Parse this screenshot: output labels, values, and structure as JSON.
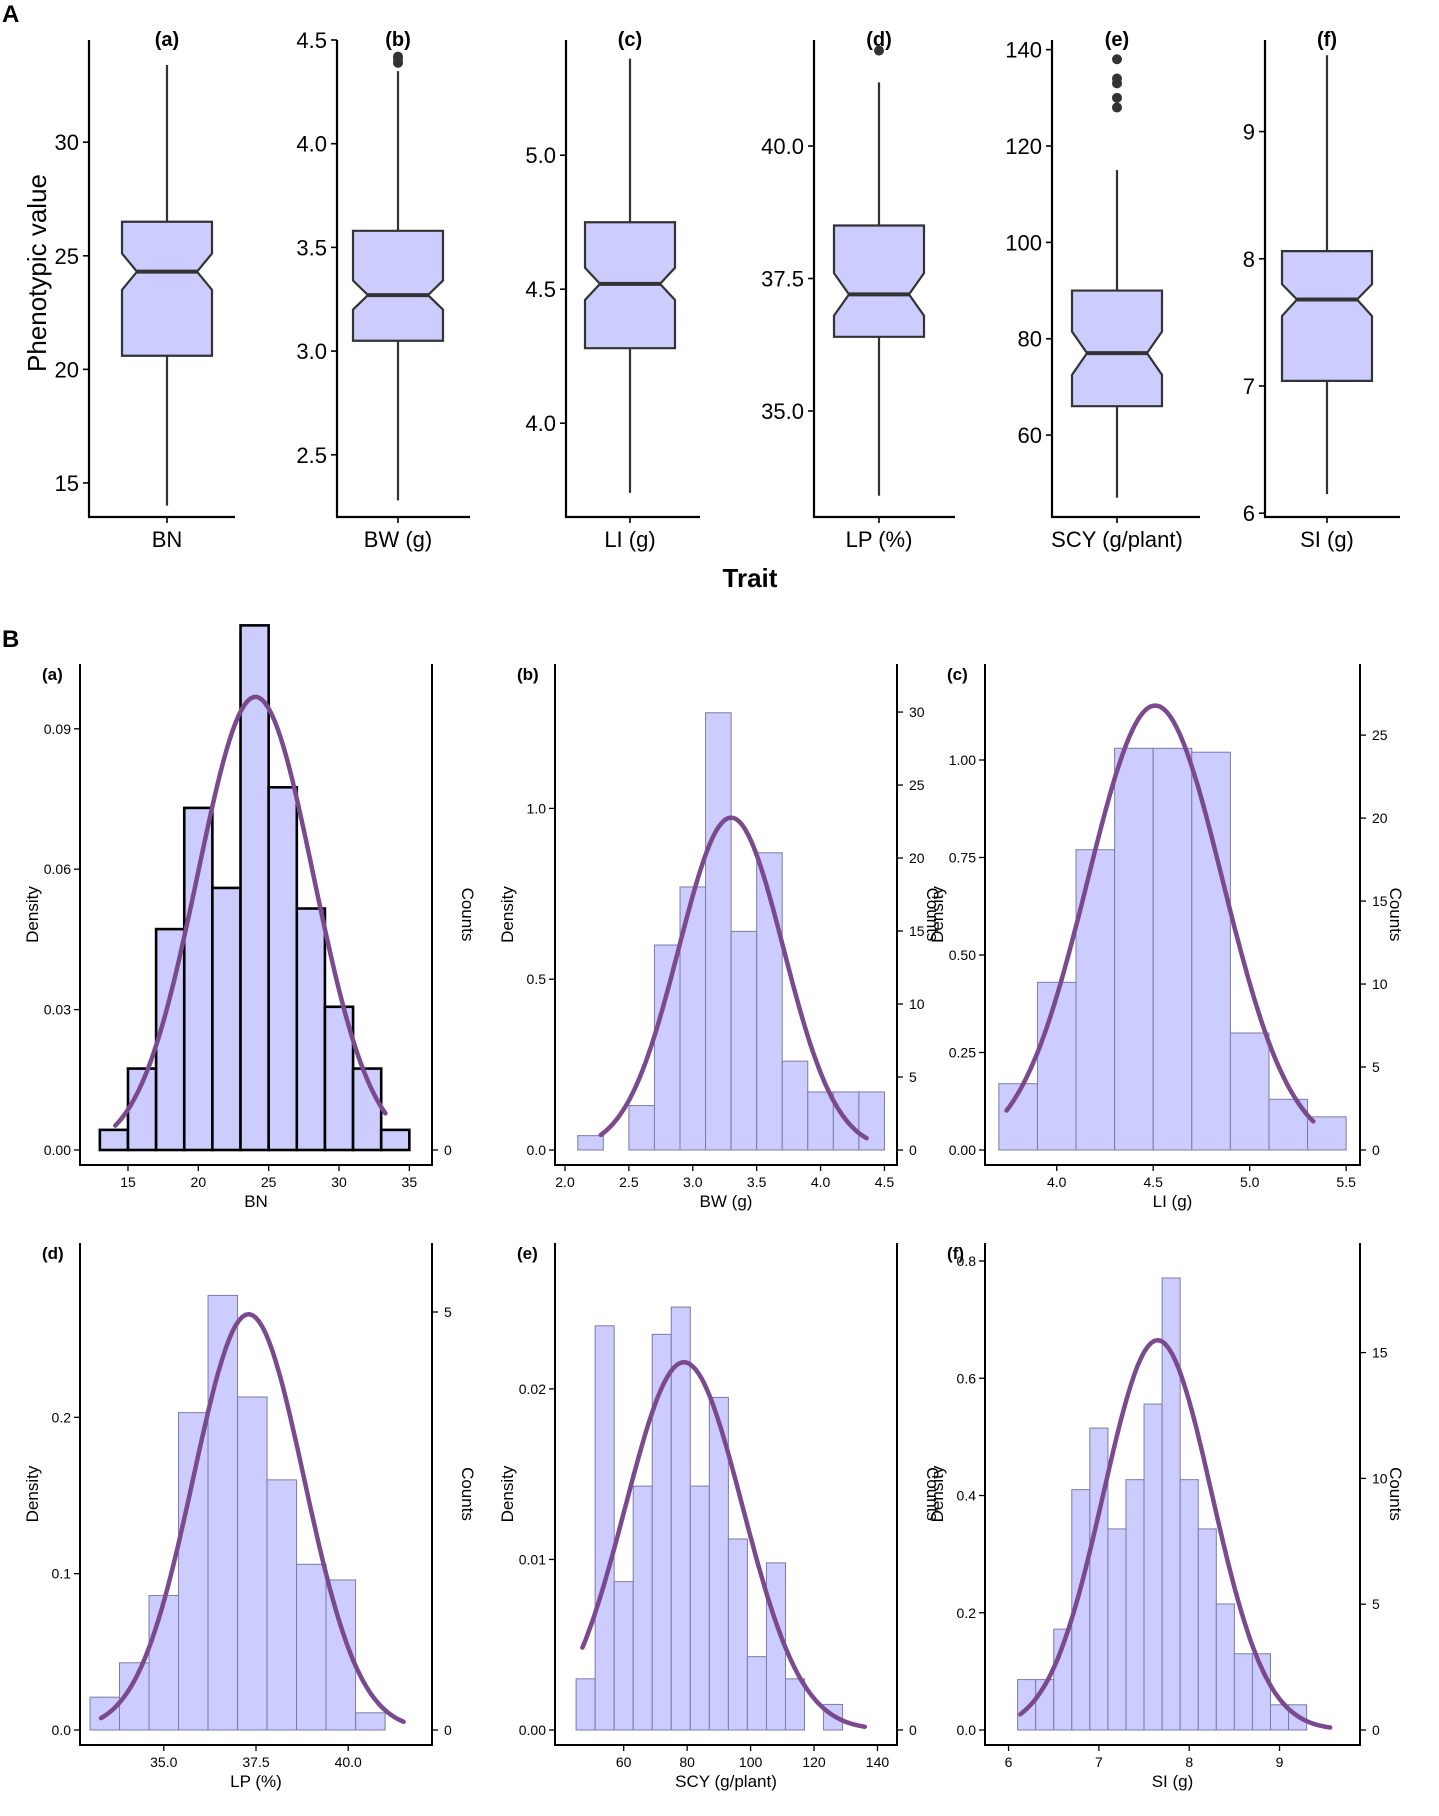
{
  "figure": {
    "panel_a_label": "A",
    "panel_b_label": "B",
    "a_ylabel": "Phenotypic value",
    "a_xlabel": "Trait",
    "colors": {
      "box_fill": "#ccccff",
      "box_stroke": "#333333",
      "bar_fill": "#ccccff",
      "bar_stroke": "#7b7ba8",
      "bar_stroke_bold": "#000000",
      "curve": "#7b4a8e",
      "axis": "#000000",
      "outlier": "#333333"
    }
  },
  "chart_data": [
    {
      "type": "boxplot",
      "panel": "A(a)",
      "title": "(a)",
      "xlabel": "BN",
      "ylim": [
        13.5,
        34.5
      ],
      "yticks": [
        15,
        20,
        25,
        30
      ],
      "ytick_labels": [
        "15",
        "20",
        "25",
        "30"
      ],
      "min": 14,
      "q1": 20.6,
      "median": 24.3,
      "q3": 26.5,
      "max": 33.4,
      "notch_low": 23.5,
      "notch_high": 25.1,
      "outliers": []
    },
    {
      "type": "boxplot",
      "panel": "A(b)",
      "title": "(b)",
      "xlabel": "BW (g)",
      "ylim": [
        2.2,
        4.5
      ],
      "yticks": [
        2.5,
        3.0,
        3.5,
        4.0,
        4.5
      ],
      "ytick_labels": [
        "2.5",
        "3.0",
        "3.5",
        "4.0",
        "4.5"
      ],
      "min": 2.28,
      "q1": 3.05,
      "median": 3.27,
      "q3": 3.58,
      "max": 4.35,
      "notch_low": 3.2,
      "notch_high": 3.34,
      "outliers": [
        4.39,
        4.41,
        4.42
      ]
    },
    {
      "type": "boxplot",
      "panel": "A(c)",
      "title": "(c)",
      "xlabel": "LI (g)",
      "ylim": [
        3.65,
        5.43
      ],
      "yticks": [
        4.0,
        4.5,
        5.0
      ],
      "ytick_labels": [
        "4.0",
        "4.5",
        "5.0"
      ],
      "min": 3.74,
      "q1": 4.28,
      "median": 4.52,
      "q3": 4.75,
      "max": 5.36,
      "notch_low": 4.46,
      "notch_high": 4.58,
      "outliers": []
    },
    {
      "type": "boxplot",
      "panel": "A(d)",
      "title": "(d)",
      "xlabel": "LP (%)",
      "ylim": [
        33.0,
        42.0
      ],
      "yticks": [
        35.0,
        37.5,
        40.0
      ],
      "ytick_labels": [
        "35.0",
        "37.5",
        "40.0"
      ],
      "min": 33.4,
      "q1": 36.4,
      "median": 37.2,
      "q3": 38.5,
      "max": 41.2,
      "notch_low": 36.8,
      "notch_high": 37.6,
      "outliers": [
        41.8
      ]
    },
    {
      "type": "boxplot",
      "panel": "A(e)",
      "title": "(e)",
      "xlabel": "SCY (g/plant)",
      "ylim": [
        43,
        142
      ],
      "yticks": [
        60,
        80,
        100,
        120,
        140
      ],
      "ytick_labels": [
        "60",
        "80",
        "100",
        "120",
        "140"
      ],
      "min": 47,
      "q1": 66,
      "median": 77,
      "q3": 90,
      "max": 115,
      "notch_low": 72.5,
      "notch_high": 81.5,
      "outliers": [
        128,
        130,
        133,
        134,
        138
      ]
    },
    {
      "type": "boxplot",
      "panel": "A(f)",
      "title": "(f)",
      "xlabel": "SI (g)",
      "ylim": [
        5.97,
        9.72
      ],
      "yticks": [
        6,
        7,
        8,
        9
      ],
      "ytick_labels": [
        "6",
        "7",
        "8",
        "9"
      ],
      "min": 6.15,
      "q1": 7.04,
      "median": 7.68,
      "q3": 8.06,
      "max": 9.6,
      "notch_low": 7.55,
      "notch_high": 7.8,
      "outliers": []
    },
    {
      "type": "histogram",
      "panel": "B(a)",
      "title": "(a)",
      "xlabel": "BN",
      "ylabel": "Density",
      "y2label": "Counts",
      "bold_bars": true,
      "xlim": [
        12.3,
        35.9
      ],
      "ylim": [
        0,
        0.1
      ],
      "xticks": [
        15,
        20,
        25,
        30,
        35
      ],
      "xtick_labels": [
        "15",
        "20",
        "25",
        "30",
        "35"
      ],
      "yticks": [
        0.0,
        0.03,
        0.06,
        0.09
      ],
      "ytick_labels": [
        "0.00",
        "0.03",
        "0.06",
        "0.09"
      ],
      "y2ticks": [
        0
      ],
      "y2tick_labels": [
        "0"
      ],
      "bin_start": 13,
      "bin_width": 2,
      "densities": [
        0.0043,
        0.0174,
        0.0472,
        0.0731,
        0.056,
        0.1121,
        0.0775,
        0.0516,
        0.0306,
        0.0174,
        0.0043
      ],
      "curve": {
        "mean": 24.06,
        "sd": 4.12,
        "scale": 1.0,
        "x_from": 14.1,
        "x_to": 33.3
      },
      "count_scale": 0
    },
    {
      "type": "histogram",
      "panel": "B(b)",
      "title": "(b)",
      "xlabel": "BW (g)",
      "ylabel": "Density",
      "y2label": "Counts",
      "bold_bars": false,
      "xlim": [
        2.0,
        4.52
      ],
      "ylim": [
        0,
        1.37
      ],
      "xticks": [
        2.0,
        2.5,
        3.0,
        3.5,
        4.0,
        4.5
      ],
      "xtick_labels": [
        "2.0",
        "2.5",
        "3.0",
        "3.5",
        "4.0",
        "4.5"
      ],
      "yticks": [
        0.0,
        0.5,
        1.0
      ],
      "ytick_labels": [
        "0.0",
        "0.5",
        "1.0"
      ],
      "y2ticks": [
        0,
        5,
        10,
        15,
        20,
        25,
        30
      ],
      "y2tick_labels": [
        "0",
        "5",
        "10",
        "15",
        "20",
        "25",
        "30"
      ],
      "bin_start": 2.1,
      "bin_width": 0.2,
      "densities": [
        0.042,
        0,
        0.13,
        0.6,
        0.77,
        1.28,
        0.64,
        0.87,
        0.26,
        0.17,
        0.17,
        0.17
      ],
      "curve": {
        "mean": 3.3,
        "sd": 0.41,
        "scale": 1.0,
        "x_from": 2.28,
        "x_to": 4.36
      },
      "count_scale": 23.4
    },
    {
      "type": "histogram",
      "panel": "B(c)",
      "title": "(c)",
      "xlabel": "LI (g)",
      "ylabel": "Density",
      "y2label": "Counts",
      "bold_bars": false,
      "xlim": [
        3.68,
        5.52
      ],
      "ylim": [
        0,
        1.2
      ],
      "xticks": [
        4.0,
        4.5,
        5.0,
        5.5
      ],
      "xtick_labels": [
        "4.0",
        "4.5",
        "5.0",
        "5.5"
      ],
      "yticks": [
        0.0,
        0.25,
        0.5,
        0.75,
        1.0
      ],
      "ytick_labels": [
        "0.00",
        "0.25",
        "0.50",
        "0.75",
        "1.00"
      ],
      "y2ticks": [
        0,
        5,
        10,
        15,
        20,
        25
      ],
      "y2tick_labels": [
        "0",
        "5",
        "10",
        "15",
        "20",
        "25"
      ],
      "bin_start": 3.7,
      "bin_width": 0.2,
      "densities": [
        0.17,
        0.43,
        0.77,
        1.03,
        1.03,
        1.02,
        0.3,
        0.13,
        0.085
      ],
      "curve": {
        "mean": 4.51,
        "sd": 0.35,
        "scale": 1.0,
        "x_from": 3.74,
        "x_to": 5.33
      },
      "count_scale": 23.5
    },
    {
      "type": "histogram",
      "panel": "B(d)",
      "title": "(d)",
      "xlabel": "LP (%)",
      "ylabel": "Density",
      "y2label": "Counts",
      "bold_bars": false,
      "xlim": [
        33.0,
        42.0
      ],
      "ylim": [
        0,
        0.3
      ],
      "xticks": [
        35.0,
        37.5,
        40.0
      ],
      "xtick_labels": [
        "35.0",
        "37.5",
        "40.0"
      ],
      "yticks": [
        0.0,
        0.1,
        0.2
      ],
      "ytick_labels": [
        "0.0",
        "0.1",
        "0.2"
      ],
      "y2ticks": [
        0,
        5
      ],
      "y2tick_labels": [
        "0",
        "5"
      ],
      "bin_start": 33.0,
      "bin_width": 0.8,
      "densities": [
        0.021,
        0.043,
        0.086,
        0.203,
        0.278,
        0.213,
        0.16,
        0.106,
        0.096,
        0.011
      ],
      "curve": {
        "mean": 37.3,
        "sd": 1.5,
        "scale": 1.0,
        "x_from": 33.3,
        "x_to": 41.5
      },
      "count_scale": 18.7
    },
    {
      "type": "histogram",
      "panel": "B(e)",
      "title": "(e)",
      "xlabel": "SCY (g/plant)",
      "ylabel": "Density",
      "y2label": "Counts",
      "bold_bars": false,
      "xlim": [
        41.5,
        143
      ],
      "ylim": [
        0,
        0.0275
      ],
      "xticks": [
        60,
        80,
        100,
        120,
        140
      ],
      "xtick_labels": [
        "60",
        "80",
        "100",
        "120",
        "140"
      ],
      "yticks": [
        0.0,
        0.01,
        0.02
      ],
      "ytick_labels": [
        "0.00",
        "0.01",
        "0.02"
      ],
      "y2ticks": [
        0
      ],
      "y2tick_labels": [
        "0"
      ],
      "bin_start": 45,
      "bin_width": 6,
      "densities": [
        0.003,
        0.0237,
        0.0087,
        0.0143,
        0.0232,
        0.0248,
        0.0143,
        0.0195,
        0.0112,
        0.0043,
        0.0098,
        0.003,
        0,
        0.0015
      ],
      "curve": {
        "mean": 79,
        "sd": 18.5,
        "scale": 1.0,
        "x_from": 47,
        "x_to": 136
      },
      "count_scale": 0
    },
    {
      "type": "histogram",
      "panel": "B(f)",
      "title": "(f)",
      "xlabel": "SI (g)",
      "ylabel": "Density",
      "y2label": "Counts",
      "bold_bars": false,
      "xlim": [
        5.85,
        9.78
      ],
      "ylim": [
        0,
        0.8
      ],
      "xticks": [
        6,
        7,
        8,
        9
      ],
      "xtick_labels": [
        "6",
        "7",
        "8",
        "9"
      ],
      "yticks": [
        0.0,
        0.2,
        0.4,
        0.6,
        0.8
      ],
      "ytick_labels": [
        "0.0",
        "0.2",
        "0.4",
        "0.6",
        "0.8"
      ],
      "y2ticks": [
        0,
        5,
        10,
        15
      ],
      "y2tick_labels": [
        "0",
        "5",
        "10",
        "15"
      ],
      "bin_start": 6.1,
      "bin_width": 0.2,
      "densities": [
        0.086,
        0.086,
        0.172,
        0.41,
        0.515,
        0.343,
        0.427,
        0.556,
        0.771,
        0.427,
        0.343,
        0.215,
        0.13,
        0.13,
        0.043,
        0.043
      ],
      "curve": {
        "mean": 7.65,
        "sd": 0.6,
        "scale": 1.0,
        "x_from": 6.13,
        "x_to": 9.56
      },
      "count_scale": 23.3
    }
  ]
}
